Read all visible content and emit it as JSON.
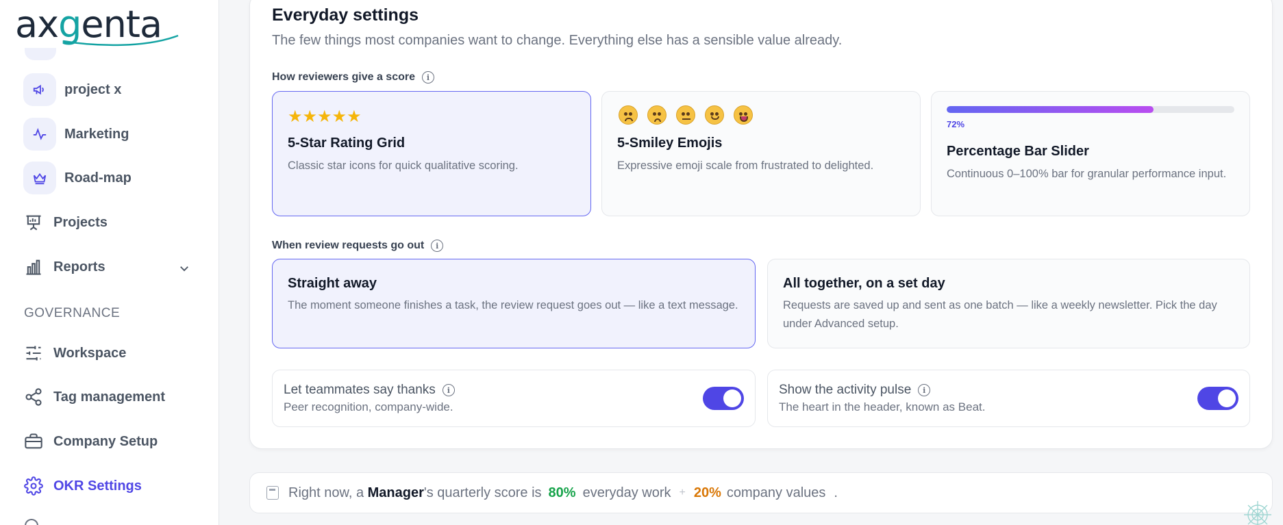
{
  "brand": {
    "logo_ax": "ax",
    "logo_g": "g",
    "logo_enta": "enta"
  },
  "sidebar": {
    "items": [
      {
        "label": "project x",
        "icon": "megaphone-icon"
      },
      {
        "label": "Marketing",
        "icon": "activity-icon"
      },
      {
        "label": "Road-map",
        "icon": "crown-icon"
      },
      {
        "label": "Projects",
        "icon": "presentation-icon"
      },
      {
        "label": "Reports",
        "icon": "bar-chart-icon"
      }
    ],
    "section": "GOVERNANCE",
    "governance": [
      {
        "label": "Workspace",
        "icon": "sliders-icon"
      },
      {
        "label": "Tag management",
        "icon": "share-icon"
      },
      {
        "label": "Company Setup",
        "icon": "briefcase-icon"
      },
      {
        "label": "OKR Settings",
        "icon": "gear-icon",
        "active": true
      }
    ]
  },
  "settings": {
    "title": "Everyday settings",
    "subtitle": "The few things most companies want to change. Everything else has a sensible value already.",
    "score_group": {
      "label": "How reviewers give a score",
      "options": [
        {
          "title": "5-Star Rating Grid",
          "desc": "Classic star icons for quick qualitative scoring.",
          "selected": true,
          "stars": "★★★★★"
        },
        {
          "title": "5-Smiley Emojis",
          "desc": "Expressive emoji scale from frustrated to delighted.",
          "selected": false
        },
        {
          "title": "Percentage Bar Slider",
          "desc": "Continuous 0–100% bar for granular performance input.",
          "selected": false,
          "bar_value": 72,
          "bar_label": "72%"
        }
      ]
    },
    "timing_group": {
      "label": "When review requests go out",
      "options": [
        {
          "title": "Straight away",
          "desc": "The moment someone finishes a task, the review request goes out — like a text message.",
          "selected": true
        },
        {
          "title": "All together, on a set day",
          "desc": "Requests are saved up and sent as one batch — like a weekly newsletter. Pick the day under Advanced setup.",
          "selected": false
        }
      ]
    },
    "toggles": [
      {
        "title": "Let teammates say thanks",
        "desc": "Peer recognition, company-wide.",
        "on": true
      },
      {
        "title": "Show the activity pulse",
        "desc": "The heart in the header, known as Beat.",
        "on": true
      }
    ]
  },
  "footer": {
    "prefix": "Right now, a",
    "role": "Manager",
    "middle": "'s quarterly score is",
    "everyday_pct": "80%",
    "everyday_label": "everyday work",
    "plus": "+",
    "values_pct": "20%",
    "values_label": "company values",
    "period": "."
  },
  "colors": {
    "accent": "#4f46e5",
    "star": "#f5b50a",
    "green": "#16a34a",
    "orange": "#d97706"
  }
}
